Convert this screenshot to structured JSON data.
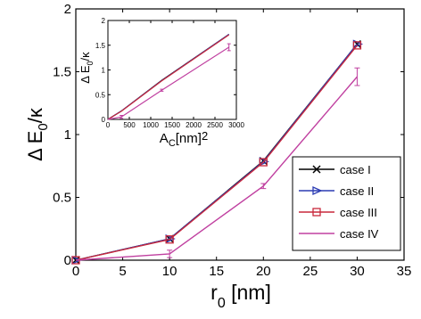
{
  "chart_data": [
    {
      "type": "line",
      "x": [
        0,
        10,
        20,
        30
      ],
      "xlim": [
        0,
        35
      ],
      "ylim": [
        0,
        2
      ],
      "xticks": [
        0,
        5,
        10,
        15,
        20,
        25,
        30,
        35
      ],
      "yticks": [
        0,
        0.5,
        1,
        1.5,
        2
      ],
      "xtick_labels": [
        "0",
        "5",
        "10",
        "15",
        "20",
        "25",
        "30",
        "35"
      ],
      "ytick_labels": [
        "0",
        "0.5",
        "1",
        "1.5",
        "2"
      ],
      "xlabel": {
        "main": "r",
        "sub": "0",
        "rest": " [nm]"
      },
      "ylabel": {
        "main": "Δ E",
        "sub": "0",
        "rest": "/κ"
      },
      "legend_position": "lower-right",
      "series": [
        {
          "name": "case I",
          "values": [
            0,
            0.17,
            0.79,
            1.72
          ],
          "color": "#000000",
          "marker": "x"
        },
        {
          "name": "case II",
          "values": [
            0,
            0.17,
            0.785,
            1.72
          ],
          "color": "#2c3cb4",
          "marker": "triangle-right"
        },
        {
          "name": "case III",
          "values": [
            0,
            0.165,
            0.78,
            1.71
          ],
          "color": "#c8283c",
          "marker": "square"
        },
        {
          "name": "case IV",
          "values": [
            0,
            0.05,
            0.59,
            1.46
          ],
          "color": "#c040a0",
          "marker": "none",
          "errors": [
            0,
            0.03,
            0.02,
            0.07
          ]
        }
      ]
    },
    {
      "type": "line",
      "x": [
        0,
        314,
        1257,
        2827
      ],
      "xlim": [
        0,
        3000
      ],
      "ylim": [
        0,
        2
      ],
      "xticks": [
        0,
        500,
        1000,
        1500,
        2000,
        2500,
        3000
      ],
      "yticks": [
        0,
        0.5,
        1,
        1.5,
        2
      ],
      "xtick_labels": [
        "0",
        "500",
        "1000",
        "1500",
        "2000",
        "2500",
        "3000"
      ],
      "ytick_labels": [
        "0",
        "0.5",
        "1",
        "1.5",
        "2"
      ],
      "xlabel": {
        "main": "A",
        "sub": "C",
        "rest": "[nm]",
        "sup": "2"
      },
      "ylabel": {
        "main": "Δ E",
        "sub": "0",
        "rest": "/κ"
      },
      "series": [
        {
          "name": "case I",
          "values": [
            0,
            0.17,
            0.79,
            1.72
          ],
          "color": "#000000"
        },
        {
          "name": "case II",
          "values": [
            0,
            0.17,
            0.785,
            1.72
          ],
          "color": "#2c3cb4"
        },
        {
          "name": "case III",
          "values": [
            0,
            0.165,
            0.78,
            1.71
          ],
          "color": "#c8283c"
        },
        {
          "name": "case IV",
          "values": [
            0,
            0.05,
            0.59,
            1.46
          ],
          "color": "#c040a0",
          "errors": [
            0,
            0.03,
            0.02,
            0.07
          ]
        }
      ]
    }
  ]
}
